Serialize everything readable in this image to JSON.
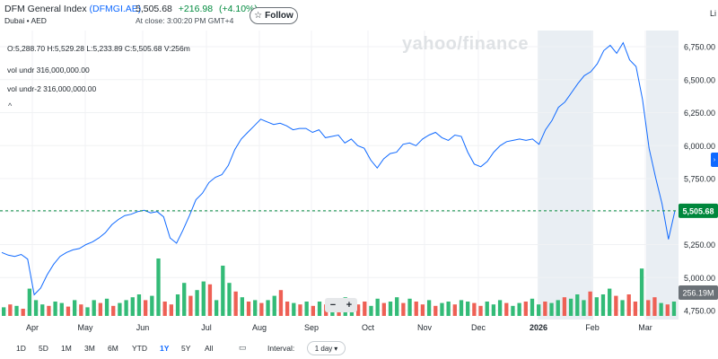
{
  "header": {
    "index_name": "DFM General Index",
    "ticker": "(DFMGI.AE)",
    "exchange_currency": "Dubai • AED",
    "last_price": "5,505.68",
    "change": "+216.98",
    "change_pct": "(+4.10%)",
    "close_time": "At close: 3:00:20 PM GMT+4",
    "follow_label": "Follow",
    "live_label": "Li"
  },
  "legend": {
    "ohlc": "O:5,288.70  H:5,529.28  L:5,233.89  C:5,505.68  V:256m",
    "vol1": "vol undr  316,000,000.00",
    "vol2": "vol undr-2  316,000,000.00"
  },
  "watermark": "yahoo/finance",
  "toolbar": {
    "ranges": [
      "1D",
      "5D",
      "1M",
      "3M",
      "6M",
      "YTD",
      "1Y",
      "5Y",
      "All"
    ],
    "active_range": "1Y",
    "interval_label": "Interval:",
    "interval_value": "1 day"
  },
  "colors": {
    "line": "#0f69ff",
    "up_volume": "#33bb77",
    "down_volume": "#ee6055",
    "price_tag": "#00873c",
    "volume_tag": "#6b7177",
    "shaded_band": "#e9eef3"
  },
  "chart_data": {
    "type": "line",
    "y_ticks": [
      "6,750.00",
      "6,500.00",
      "6,250.00",
      "6,000.00",
      "5,750.00",
      "5,500.00",
      "5,250.00",
      "5,000.00",
      "4,750.00"
    ],
    "ylim": [
      4750,
      6750
    ],
    "x_labels": [
      "Apr",
      "May",
      "Jun",
      "Jul",
      "Aug",
      "Sep",
      "Oct",
      "Nov",
      "Dec",
      "2026",
      "Feb",
      "Mar"
    ],
    "last_price_label": "5,505.68",
    "last_price_value": 5505.68,
    "volume_label": "256.19M",
    "series": [
      {
        "values": [
          5190,
          5170,
          5160,
          5175,
          5140,
          4870,
          4920,
          5020,
          5100,
          5160,
          5190,
          5210,
          5220,
          5250,
          5270,
          5300,
          5340,
          5400,
          5440,
          5470,
          5480,
          5500,
          5510,
          5490,
          5500,
          5460,
          5300,
          5260,
          5360,
          5470,
          5590,
          5640,
          5720,
          5760,
          5780,
          5850,
          5970,
          6050,
          6100,
          6150,
          6200,
          6180,
          6160,
          6170,
          6150,
          6120,
          6130,
          6130,
          6100,
          6120,
          6060,
          6070,
          6080,
          6020,
          6050,
          6000,
          5980,
          5890,
          5830,
          5900,
          5940,
          5950,
          6010,
          6020,
          6000,
          6050,
          6080,
          6100,
          6060,
          6040,
          6080,
          6070,
          5950,
          5860,
          5840,
          5880,
          5950,
          6000,
          6030,
          6040,
          6050,
          6040,
          6050,
          6010,
          6120,
          6190,
          6290,
          6330,
          6400,
          6470,
          6530,
          6560,
          6620,
          6720,
          6760,
          6700,
          6780,
          6650,
          6600,
          6350,
          5980,
          5760,
          5560,
          5290,
          5505.68
        ]
      }
    ],
    "volume": [
      0.12,
      0.16,
      0.14,
      0.1,
      0.38,
      0.22,
      0.16,
      0.14,
      0.2,
      0.18,
      0.13,
      0.22,
      0.16,
      0.12,
      0.22,
      0.18,
      0.24,
      0.14,
      0.18,
      0.22,
      0.26,
      0.3,
      0.22,
      0.28,
      0.8,
      0.2,
      0.16,
      0.3,
      0.46,
      0.28,
      0.36,
      0.48,
      0.44,
      0.22,
      0.7,
      0.46,
      0.34,
      0.26,
      0.2,
      0.22,
      0.18,
      0.22,
      0.28,
      0.36,
      0.2,
      0.18,
      0.16,
      0.2,
      0.14,
      0.2,
      0.16,
      0.22,
      0.18,
      0.26,
      0.22,
      0.16,
      0.2,
      0.14,
      0.24,
      0.18,
      0.2,
      0.26,
      0.18,
      0.24,
      0.2,
      0.16,
      0.22,
      0.14,
      0.18,
      0.2,
      0.16,
      0.22,
      0.2,
      0.18,
      0.14,
      0.2,
      0.16,
      0.22,
      0.18,
      0.14,
      0.18,
      0.2,
      0.24,
      0.16,
      0.2,
      0.18,
      0.22,
      0.26,
      0.24,
      0.3,
      0.22,
      0.34,
      0.26,
      0.3,
      0.38,
      0.28,
      0.22,
      0.3,
      0.2,
      0.66,
      0.22,
      0.26,
      0.18,
      0.16,
      0.2
    ],
    "volume_up": [
      true,
      false,
      true,
      false,
      true,
      true,
      true,
      false,
      true,
      true,
      false,
      true,
      false,
      true,
      true,
      false,
      true,
      false,
      true,
      true,
      true,
      true,
      false,
      true,
      true,
      false,
      false,
      true,
      true,
      false,
      true,
      true,
      false,
      true,
      true,
      true,
      false,
      true,
      false,
      true,
      false,
      true,
      true,
      false,
      false,
      true,
      false,
      true,
      false,
      true,
      false,
      true,
      false,
      true,
      true,
      false,
      false,
      true,
      true,
      false,
      true,
      true,
      false,
      true,
      false,
      false,
      true,
      false,
      true,
      true,
      false,
      true,
      true,
      false,
      false,
      true,
      true,
      true,
      false,
      true,
      true,
      false,
      true,
      true,
      false,
      true,
      true,
      false,
      true,
      true,
      true,
      false,
      true,
      true,
      true,
      false,
      true,
      false,
      false,
      true,
      false,
      false,
      true,
      false,
      true
    ]
  }
}
